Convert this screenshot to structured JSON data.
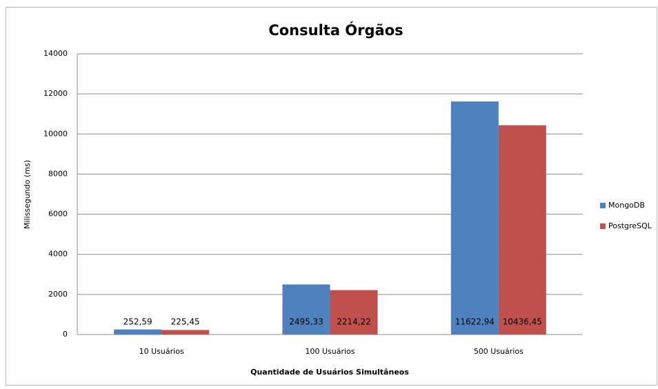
{
  "chart_data": {
    "type": "bar",
    "title": "Consulta Órgãos",
    "x_label": "Quantidade de Usuários Simultâneos",
    "y_label": "Milissegundo (ms)",
    "categories": [
      "10 Usuários",
      "100 Usuários",
      "500 Usuários"
    ],
    "series": [
      {
        "name": "MongoDB",
        "color": "#4f81bd",
        "values": [
          252.59,
          2495.33,
          11622.94
        ],
        "value_labels": [
          "252,59",
          "2495,33",
          "11622,94"
        ]
      },
      {
        "name": "PostgreSQL",
        "color": "#c0504d",
        "values": [
          225.45,
          2214.22,
          10436.45
        ],
        "value_labels": [
          "225,45",
          "2214,22",
          "10436,45"
        ]
      }
    ],
    "ylim": [
      0,
      14000
    ],
    "yticks": [
      0,
      2000,
      4000,
      6000,
      8000,
      10000,
      12000,
      14000
    ],
    "grid": true,
    "legend": "right"
  }
}
